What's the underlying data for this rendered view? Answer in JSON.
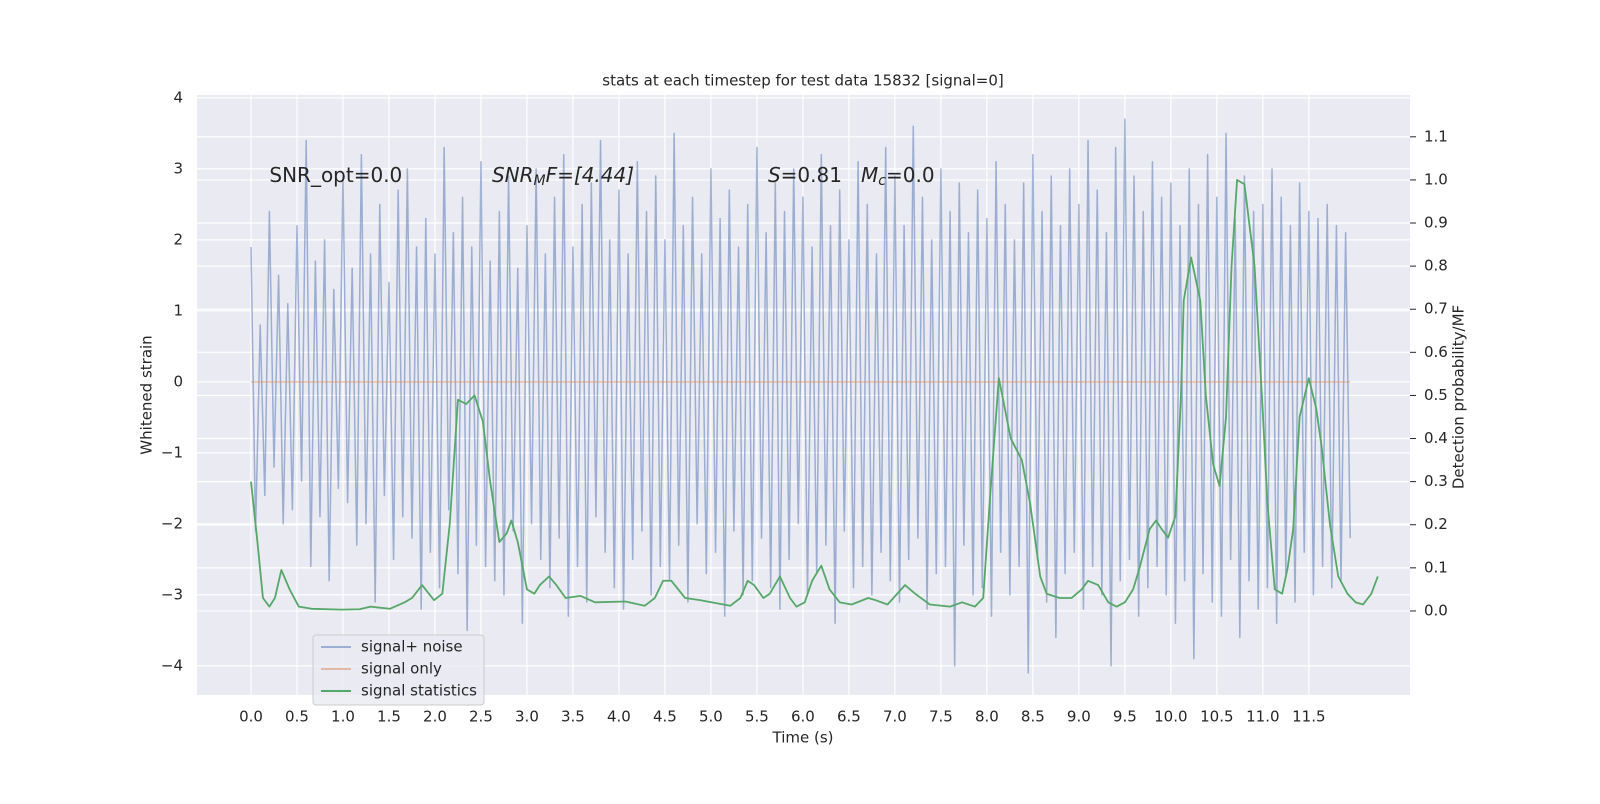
{
  "chart_data": {
    "type": "line",
    "title": "stats at each timestep for test data 15832 [signal=0]",
    "xlabel": "Time (s)",
    "ylabel": "Whitened strain",
    "y2label": "Detection probability/MF",
    "annotations": [
      {
        "x": 0.2,
        "y": 2.9,
        "parts": [
          {
            "text": "SNR_opt=0.0"
          }
        ]
      },
      {
        "x": 2.62,
        "y": 2.9,
        "parts": [
          {
            "text": "SNR",
            "style": "italic"
          },
          {
            "text": "M",
            "style": "italic-sub"
          },
          {
            "text": "F=[4.44]",
            "style": "italic-first"
          }
        ]
      },
      {
        "x": 5.62,
        "y": 2.9,
        "parts": [
          {
            "text": "S",
            "style": "italic"
          },
          {
            "text": "=0.81   "
          },
          {
            "text": "M",
            "style": "italic"
          },
          {
            "text": "c",
            "style": "italic-sub"
          },
          {
            "text": "=0.0"
          }
        ]
      }
    ],
    "xlim": [
      -0.587,
      12.6
    ],
    "ylim": [
      -4.41,
      4.04
    ],
    "y2lim": [
      -0.195,
      1.197
    ],
    "xticks": [
      {
        "value": 0,
        "label": "0.0"
      },
      0.5,
      {
        "value": 1,
        "label": "1.0"
      },
      1.5,
      {
        "value": 2,
        "label": "2.0"
      },
      2.5,
      {
        "value": 3,
        "label": "3.0"
      },
      3.5,
      {
        "value": 4,
        "label": "4.0"
      },
      4.5,
      {
        "value": 5,
        "label": "5.0"
      },
      5.5,
      {
        "value": 6,
        "label": "6.0"
      },
      6.5,
      {
        "value": 7,
        "label": "7.0"
      },
      7.5,
      {
        "value": 8,
        "label": "8.0"
      },
      8.5,
      {
        "value": 9,
        "label": "9.0"
      },
      9.5,
      {
        "value": 10,
        "label": "10.0"
      },
      10.5,
      {
        "value": 11,
        "label": "11.0"
      },
      11.5
    ],
    "yticks": [
      {
        "value": -4,
        "label": "−4"
      },
      {
        "value": -3,
        "label": "−3"
      },
      {
        "value": -2,
        "label": "−2"
      },
      {
        "value": -1,
        "label": "−1"
      },
      0,
      1,
      2,
      3,
      4
    ],
    "y2ticks": [
      {
        "value": 0,
        "label": "0.0"
      },
      0.1,
      0.2,
      0.3,
      0.4,
      0.5,
      0.6,
      0.7,
      0.8,
      0.9,
      {
        "value": 1,
        "label": "1.0"
      },
      1.1
    ],
    "grid": true,
    "legend": "lower left",
    "series": [
      {
        "name": "signal+ noise",
        "color": "#4c72b0",
        "opacity": 0.5,
        "x": [
          0,
          0.05,
          0.1,
          0.15,
          0.2,
          0.25,
          0.3,
          0.35,
          0.4,
          0.45,
          0.5,
          0.55,
          0.6,
          0.65,
          0.7,
          0.75,
          0.8,
          0.85,
          0.9,
          0.95,
          1,
          1.05,
          1.1,
          1.15,
          1.2,
          1.25,
          1.3,
          1.35,
          1.4,
          1.45,
          1.5,
          1.55,
          1.6,
          1.65,
          1.7,
          1.75,
          1.8,
          1.85,
          1.9,
          1.95,
          2,
          2.05,
          2.1,
          2.15,
          2.2,
          2.25,
          2.3,
          2.35,
          2.4,
          2.45,
          2.5,
          2.55,
          2.6,
          2.65,
          2.7,
          2.75,
          2.8,
          2.85,
          2.9,
          2.95,
          3,
          3.05,
          3.1,
          3.15,
          3.2,
          3.25,
          3.3,
          3.35,
          3.4,
          3.45,
          3.5,
          3.55,
          3.6,
          3.65,
          3.7,
          3.75,
          3.8,
          3.85,
          3.9,
          3.95,
          4,
          4.05,
          4.1,
          4.15,
          4.2,
          4.25,
          4.3,
          4.35,
          4.4,
          4.45,
          4.5,
          4.55,
          4.6,
          4.65,
          4.7,
          4.75,
          4.8,
          4.85,
          4.9,
          4.95,
          5,
          5.05,
          5.1,
          5.15,
          5.2,
          5.25,
          5.3,
          5.35,
          5.4,
          5.45,
          5.5,
          5.55,
          5.6,
          5.65,
          5.7,
          5.75,
          5.8,
          5.85,
          5.9,
          5.95,
          6,
          6.05,
          6.1,
          6.15,
          6.2,
          6.25,
          6.3,
          6.35,
          6.4,
          6.45,
          6.5,
          6.55,
          6.6,
          6.65,
          6.7,
          6.75,
          6.8,
          6.85,
          6.9,
          6.95,
          7,
          7.05,
          7.1,
          7.15,
          7.2,
          7.25,
          7.3,
          7.35,
          7.4,
          7.45,
          7.5,
          7.55,
          7.6,
          7.65,
          7.7,
          7.75,
          7.8,
          7.85,
          7.9,
          7.95,
          8,
          8.05,
          8.1,
          8.15,
          8.2,
          8.25,
          8.3,
          8.35,
          8.4,
          8.45,
          8.5,
          8.55,
          8.6,
          8.65,
          8.7,
          8.75,
          8.8,
          8.85,
          8.9,
          8.95,
          9,
          9.05,
          9.1,
          9.15,
          9.2,
          9.25,
          9.3,
          9.35,
          9.4,
          9.45,
          9.5,
          9.55,
          9.6,
          9.65,
          9.7,
          9.75,
          9.8,
          9.85,
          9.9,
          9.95,
          10,
          10.05,
          10.1,
          10.15,
          10.2,
          10.25,
          10.3,
          10.35,
          10.4,
          10.45,
          10.5,
          10.55,
          10.6,
          10.65,
          10.7,
          10.75,
          10.8,
          10.85,
          10.9,
          10.95,
          11,
          11.05,
          11.1,
          11.15,
          11.2,
          11.25,
          11.3,
          11.35,
          11.4,
          11.45,
          11.5,
          11.55,
          11.6,
          11.65,
          11.7,
          11.75,
          11.8,
          11.85,
          11.9,
          11.95
        ],
        "values": [
          1.9,
          -2.1,
          0.8,
          -1.6,
          2.4,
          -1.2,
          1.5,
          -2.0,
          1.1,
          -1.8,
          2.2,
          -1.4,
          3.4,
          -2.6,
          1.7,
          -1.9,
          2.0,
          -2.8,
          1.3,
          -1.5,
          2.9,
          -1.7,
          1.6,
          -2.3,
          3.2,
          -2.0,
          1.8,
          -3.1,
          2.5,
          -1.6,
          1.4,
          -2.5,
          2.7,
          -1.9,
          3.0,
          -2.2,
          1.9,
          -3.2,
          2.3,
          -2.4,
          1.8,
          -2.9,
          3.3,
          -1.8,
          2.1,
          -2.7,
          2.6,
          -3.5,
          1.9,
          -2.3,
          3.1,
          -2.6,
          1.7,
          -2.8,
          2.4,
          -3.0,
          2.9,
          -2.1,
          1.6,
          -3.4,
          2.2,
          -2.0,
          3.0,
          -2.5,
          1.8,
          -2.9,
          2.6,
          -2.2,
          3.2,
          -3.3,
          1.9,
          -2.6,
          2.5,
          -3.1,
          2.8,
          -1.9,
          3.4,
          -2.4,
          2.0,
          -2.9,
          2.7,
          -3.2,
          1.8,
          -2.5,
          3.1,
          -2.1,
          2.4,
          -3.0,
          2.9,
          -2.6,
          2.0,
          -2.8,
          3.5,
          -2.3,
          2.2,
          -3.1,
          2.6,
          -2.0,
          1.8,
          -2.7,
          3.0,
          -2.4,
          2.3,
          -3.3,
          2.7,
          -2.1,
          1.9,
          -3.0,
          2.5,
          -2.8,
          3.3,
          -2.2,
          2.1,
          -2.9,
          2.8,
          -3.2,
          2.4,
          -2.5,
          3.0,
          -2.0,
          2.6,
          -3.0,
          1.9,
          -2.7,
          3.2,
          -2.3,
          2.2,
          -3.4,
          2.7,
          -2.1,
          2.0,
          -2.9,
          3.1,
          -2.6,
          2.5,
          -3.0,
          1.8,
          -2.4,
          3.3,
          -2.8,
          2.9,
          -3.1,
          2.2,
          -2.5,
          3.6,
          -2.2,
          2.6,
          -3.2,
          2.0,
          -2.7,
          3.0,
          -2.6,
          2.4,
          -4.0,
          2.8,
          -2.3,
          2.1,
          -3.0,
          2.7,
          -2.9,
          2.3,
          -3.3,
          3.1,
          -2.4,
          2.5,
          -3.0,
          2.0,
          -2.6,
          2.8,
          -4.1,
          3.2,
          -2.5,
          2.4,
          -3.1,
          2.9,
          -3.6,
          2.2,
          -2.7,
          3.0,
          -2.4,
          2.5,
          -3.2,
          3.4,
          -2.6,
          2.7,
          -3.0,
          2.1,
          -4.0,
          3.3,
          -2.8,
          3.7,
          -2.5,
          2.9,
          -3.3,
          2.4,
          -2.9,
          3.1,
          -2.6,
          2.6,
          -3.0,
          2.8,
          -3.4,
          2.2,
          -2.8,
          3.0,
          -3.9,
          2.5,
          -2.7,
          3.2,
          -3.1,
          2.6,
          -3.3,
          3.5,
          -2.5,
          2.3,
          -3.6,
          2.9,
          -2.8,
          2.4,
          -3.2,
          2.5,
          -2.9,
          3.0,
          -3.4,
          2.6,
          -2.7,
          2.2,
          -3.1,
          2.8,
          -2.4,
          2.4,
          -3.0,
          2.3,
          -2.6,
          2.5,
          -2.9,
          2.2,
          -2.8,
          2.1,
          -2.2
        ]
      },
      {
        "name": "signal only",
        "color": "#dd8452",
        "opacity": 0.5,
        "x": [
          0,
          11.95
        ],
        "values": [
          0,
          0
        ]
      },
      {
        "name": "signal statistics",
        "color": "#55a868",
        "opacity": 1,
        "axis": "y2",
        "x": [
          0,
          0.07,
          0.13,
          0.2,
          0.26,
          0.33,
          0.42,
          0.52,
          0.66,
          0.98,
          1.18,
          1.3,
          1.51,
          1.67,
          1.75,
          1.86,
          1.99,
          2.08,
          2.16,
          2.25,
          2.34,
          2.43,
          2.52,
          2.6,
          2.7,
          2.78,
          2.83,
          2.9,
          3.0,
          3.08,
          3.14,
          3.24,
          3.32,
          3.42,
          3.58,
          3.74,
          4.07,
          4.28,
          4.39,
          4.48,
          4.57,
          4.72,
          4.88,
          5.21,
          5.32,
          5.4,
          5.47,
          5.57,
          5.64,
          5.75,
          5.86,
          5.93,
          6.02,
          6.1,
          6.2,
          6.29,
          6.4,
          6.53,
          6.71,
          6.79,
          6.92,
          7.11,
          7.22,
          7.38,
          7.6,
          7.73,
          7.87,
          7.96,
          8.03,
          8.13,
          8.26,
          8.38,
          8.47,
          8.58,
          8.65,
          8.79,
          8.92,
          9.03,
          9.1,
          9.21,
          9.32,
          9.41,
          9.5,
          9.59,
          9.66,
          9.77,
          9.84,
          9.9,
          9.97,
          10.05,
          10.11,
          10.14,
          10.22,
          10.32,
          10.38,
          10.46,
          10.53,
          10.6,
          10.66,
          10.72,
          10.8,
          10.91,
          10.99,
          11.05,
          11.13,
          11.21,
          11.27,
          11.33,
          11.4,
          11.5,
          11.58,
          11.64,
          11.73,
          11.82,
          11.92,
          12.01,
          12.09,
          12.18,
          12.25
        ],
        "values": [
          0.3,
          0.16,
          0.03,
          0.01,
          0.03,
          0.095,
          0.05,
          0.01,
          0.005,
          0.003,
          0.004,
          0.01,
          0.005,
          0.02,
          0.03,
          0.06,
          0.025,
          0.04,
          0.2,
          0.49,
          0.48,
          0.5,
          0.44,
          0.3,
          0.16,
          0.18,
          0.21,
          0.16,
          0.05,
          0.04,
          0.06,
          0.08,
          0.06,
          0.03,
          0.035,
          0.02,
          0.022,
          0.012,
          0.03,
          0.07,
          0.07,
          0.03,
          0.025,
          0.012,
          0.03,
          0.07,
          0.06,
          0.03,
          0.04,
          0.08,
          0.03,
          0.01,
          0.02,
          0.07,
          0.105,
          0.05,
          0.02,
          0.015,
          0.03,
          0.025,
          0.015,
          0.06,
          0.04,
          0.015,
          0.01,
          0.02,
          0.01,
          0.03,
          0.25,
          0.54,
          0.4,
          0.35,
          0.25,
          0.08,
          0.04,
          0.03,
          0.03,
          0.05,
          0.07,
          0.06,
          0.02,
          0.01,
          0.02,
          0.05,
          0.1,
          0.19,
          0.21,
          0.19,
          0.17,
          0.22,
          0.5,
          0.72,
          0.82,
          0.72,
          0.5,
          0.34,
          0.29,
          0.45,
          0.8,
          1.0,
          0.99,
          0.8,
          0.5,
          0.25,
          0.05,
          0.04,
          0.1,
          0.19,
          0.45,
          0.54,
          0.47,
          0.38,
          0.2,
          0.08,
          0.04,
          0.02,
          0.015,
          0.04,
          0.08
        ]
      }
    ]
  }
}
